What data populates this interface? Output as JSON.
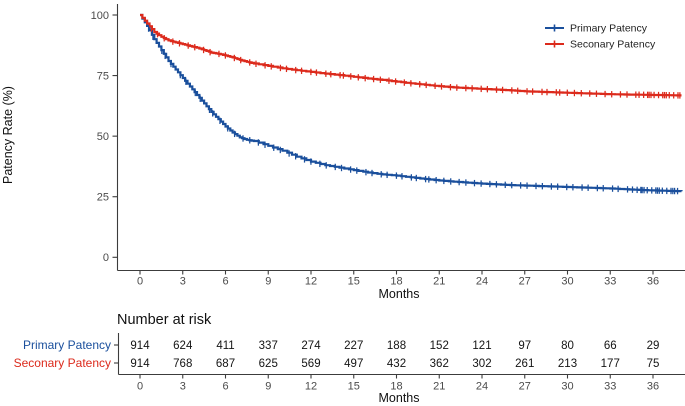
{
  "chart_data": {
    "type": "line",
    "subtype": "kaplan-meier-step",
    "title": "",
    "ylabel": "Patency Rate (%)",
    "xlabel": "Months",
    "ylim": [
      0,
      100
    ],
    "xlim": [
      0,
      38
    ],
    "yticks": [
      0,
      25,
      50,
      75,
      100
    ],
    "xticks": [
      0,
      3,
      6,
      9,
      12,
      15,
      18,
      21,
      24,
      27,
      30,
      33,
      36
    ],
    "grid": false,
    "legend_position": "top-right",
    "x": [
      0,
      0.5,
      1,
      1.5,
      2,
      2.5,
      3,
      3.5,
      4,
      4.5,
      5,
      5.5,
      6,
      6.5,
      7,
      7.5,
      8,
      9,
      10,
      11,
      12,
      13,
      14,
      15,
      16,
      17,
      18,
      19,
      20,
      21,
      22,
      23,
      24,
      25,
      26,
      27,
      28,
      29,
      30,
      31,
      32,
      33,
      34,
      35,
      36,
      37,
      38
    ],
    "series": [
      {
        "name": "Primary Patency",
        "color": "#1a4f9c",
        "values": [
          100,
          95.5,
          90,
          85.5,
          81,
          77.5,
          74,
          70.5,
          67,
          63.5,
          60,
          57,
          54,
          51.5,
          49.5,
          48.5,
          48,
          46,
          44,
          41.5,
          39.5,
          38,
          37,
          36,
          35,
          34.2,
          33.7,
          33,
          32.3,
          31.7,
          31.2,
          30.8,
          30.4,
          30.1,
          29.8,
          29.6,
          29.4,
          29.2,
          29,
          28.8,
          28.6,
          28.4,
          28.1,
          27.8,
          27.6,
          27.4,
          27.3
        ]
      },
      {
        "name": "Seconary Patency",
        "color": "#dc2a1c",
        "values": [
          100,
          96.5,
          93,
          91,
          89.5,
          88.7,
          88,
          87.2,
          86.5,
          85.5,
          84.5,
          84,
          83.3,
          82.5,
          81.5,
          80.7,
          80,
          79,
          78,
          77.2,
          76.5,
          75.8,
          75.2,
          74.5,
          73.8,
          73.2,
          72.5,
          71.8,
          71.2,
          70.6,
          70.1,
          69.8,
          69.5,
          69.2,
          68.9,
          68.5,
          68.3,
          68.1,
          67.9,
          67.7,
          67.5,
          67.3,
          67.2,
          67.1,
          67,
          66.9,
          66.8
        ]
      }
    ],
    "number_at_risk": {
      "title": "Number at risk",
      "timepoints": [
        0,
        3,
        6,
        9,
        12,
        15,
        18,
        21,
        24,
        27,
        30,
        33,
        36
      ],
      "rows": [
        {
          "label": "Primary Patency",
          "color": "#1a4f9c",
          "values": [
            914,
            624,
            411,
            337,
            274,
            227,
            188,
            152,
            121,
            97,
            80,
            66,
            29
          ]
        },
        {
          "label": "Seconary Patency",
          "color": "#dc2a1c",
          "values": [
            914,
            768,
            687,
            625,
            569,
            497,
            432,
            362,
            302,
            261,
            213,
            177,
            75
          ]
        }
      ],
      "xlabel": "Months"
    }
  },
  "style": {
    "axis_color": "#3c3c3c",
    "background": "#ffffff"
  }
}
